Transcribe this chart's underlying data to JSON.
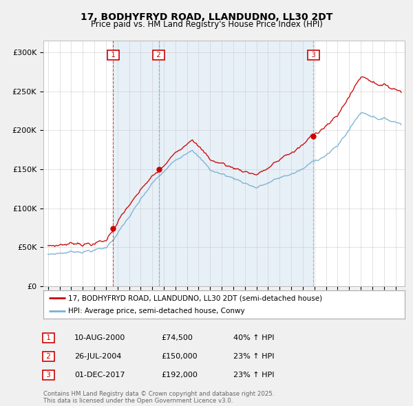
{
  "title": "17, BODHYFRYD ROAD, LLANDUDNO, LL30 2DT",
  "subtitle": "Price paid vs. HM Land Registry's House Price Index (HPI)",
  "legend_line1": "17, BODHYFRYD ROAD, LLANDUDNO, LL30 2DT (semi-detached house)",
  "legend_line2": "HPI: Average price, semi-detached house, Conwy",
  "transactions": [
    {
      "num": 1,
      "date": "10-AUG-2000",
      "price": 74500,
      "change": "40% ↑ HPI",
      "year": 2000.625
    },
    {
      "num": 2,
      "date": "26-JUL-2004",
      "price": 150000,
      "change": "23% ↑ HPI",
      "year": 2004.562
    },
    {
      "num": 3,
      "date": "01-DEC-2017",
      "price": 192000,
      "change": "23% ↑ HPI",
      "year": 2017.917
    }
  ],
  "footer": "Contains HM Land Registry data © Crown copyright and database right 2025.\nThis data is licensed under the Open Government Licence v3.0.",
  "red_color": "#cc0000",
  "blue_color": "#7ab0d4",
  "shade_color": "#ddeeff",
  "bg_color": "#f0f0f0",
  "plot_bg": "#ffffff",
  "yticks": [
    0,
    50000,
    100000,
    150000,
    200000,
    250000,
    300000
  ],
  "ylabels": [
    "£0",
    "£50K",
    "£100K",
    "£150K",
    "£200K",
    "£250K",
    "£300K"
  ],
  "ymax": 315000,
  "xlim_left": 1994.6,
  "xlim_right": 2025.8
}
